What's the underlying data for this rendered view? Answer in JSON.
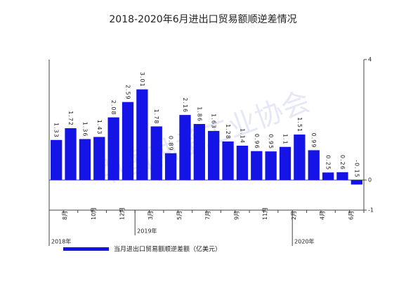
{
  "chart_data": {
    "type": "bar",
    "title": "2018-2020年6月进出口贸易额顺逆差情况",
    "categories": [
      null,
      "8月",
      null,
      "10月",
      null,
      "12月",
      null,
      "3月",
      null,
      "5月",
      null,
      "7月",
      null,
      "9月",
      null,
      "11月",
      null,
      "2月",
      null,
      "4月",
      null,
      "6月"
    ],
    "series": [
      {
        "name": "当月进出口贸易额顺逆差额（亿美元）",
        "color": "#1414e6",
        "axis": "y2",
        "values": [
          1.33,
          1.72,
          1.36,
          1.43,
          2.08,
          2.59,
          3.01,
          1.78,
          0.89,
          2.16,
          1.86,
          1.63,
          1.28,
          1.14,
          0.96,
          0.95,
          1.1,
          1.51,
          0.99,
          0.25,
          0.26,
          -0.15
        ]
      }
    ],
    "y2lim": [
      -1,
      4
    ],
    "y2ticks": [
      -1,
      0,
      4
    ],
    "annotations": [
      "2018年",
      "2019年",
      "2020年"
    ],
    "watermark": "中国轴承工业协会",
    "legend": "bottom-left"
  }
}
